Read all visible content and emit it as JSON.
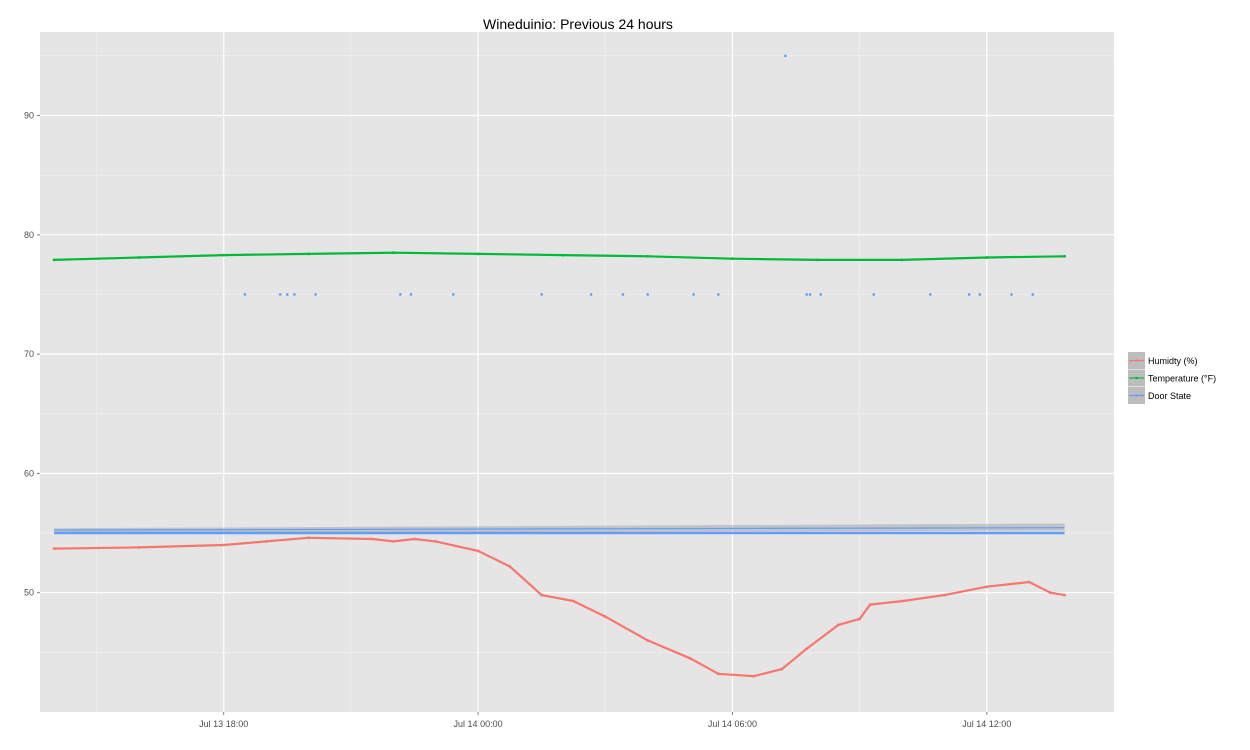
{
  "chart_data": {
    "type": "line",
    "title": "Wineduinio: Previous 24 hours",
    "xlabel": "",
    "ylabel": "",
    "x_axis_kind": "datetime",
    "xlim": [
      "Jul 13 13:40",
      "Jul 14 15:00"
    ],
    "ylim": [
      40,
      97
    ],
    "x_ticks": [
      "Jul 13 18:00",
      "Jul 14 00:00",
      "Jul 14 06:00",
      "Jul 14 12:00"
    ],
    "y_ticks": [
      50,
      60,
      70,
      80,
      90
    ],
    "grid": true,
    "legend_position": "right",
    "series": [
      {
        "name": "Humidty (%)",
        "color": "#F8766D",
        "style": "points with smoothed curve",
        "x": [
          "Jul 13 14:00",
          "Jul 13 16:00",
          "Jul 13 18:00",
          "Jul 13 19:00",
          "Jul 13 20:00",
          "Jul 13 21:30",
          "Jul 13 22:00",
          "Jul 13 22:30",
          "Jul 13 23:00",
          "Jul 14 00:00",
          "Jul 14 00:45",
          "Jul 14 01:30",
          "Jul 14 02:15",
          "Jul 14 03:00",
          "Jul 14 04:00",
          "Jul 14 05:00",
          "Jul 14 05:40",
          "Jul 14 06:30",
          "Jul 14 07:10",
          "Jul 14 07:45",
          "Jul 14 08:30",
          "Jul 14 09:00",
          "Jul 14 09:15",
          "Jul 14 10:00",
          "Jul 14 11:00",
          "Jul 14 12:00",
          "Jul 14 13:00",
          "Jul 14 13:30",
          "Jul 14 13:50"
        ],
        "values": [
          53.7,
          53.8,
          54.0,
          54.3,
          54.6,
          54.5,
          54.3,
          54.5,
          54.3,
          53.5,
          52.2,
          49.8,
          49.3,
          48.0,
          46.0,
          44.5,
          43.2,
          43.0,
          43.6,
          45.3,
          47.3,
          47.8,
          49.0,
          49.3,
          49.8,
          50.5,
          50.9,
          50.0,
          49.8
        ]
      },
      {
        "name": "Temperature (°F)",
        "color": "#00BA38",
        "style": "points with smoothed curve",
        "x": [
          "Jul 13 14:00",
          "Jul 13 16:00",
          "Jul 13 18:00",
          "Jul 13 20:00",
          "Jul 13 22:00",
          "Jul 14 00:00",
          "Jul 14 02:00",
          "Jul 14 04:00",
          "Jul 14 06:00",
          "Jul 14 08:00",
          "Jul 14 10:00",
          "Jul 14 12:00",
          "Jul 14 13:50"
        ],
        "values": [
          77.9,
          78.1,
          78.3,
          78.4,
          78.5,
          78.4,
          78.3,
          78.2,
          78.0,
          77.9,
          77.9,
          78.1,
          78.2
        ]
      },
      {
        "name": "Door State",
        "color": "#619CFF",
        "style": "points with smoothed curve",
        "baseline": 55,
        "x": [
          "Jul 13 18:30",
          "Jul 13 19:20",
          "Jul 13 19:30",
          "Jul 13 19:40",
          "Jul 13 20:10",
          "Jul 13 22:10",
          "Jul 13 22:25",
          "Jul 13 23:25",
          "Jul 14 01:30",
          "Jul 14 02:40",
          "Jul 14 03:25",
          "Jul 14 04:00",
          "Jul 14 05:05",
          "Jul 14 05:40",
          "Jul 14 07:15",
          "Jul 14 07:45",
          "Jul 14 07:50",
          "Jul 14 08:05",
          "Jul 14 09:20",
          "Jul 14 10:40",
          "Jul 14 11:35",
          "Jul 14 11:50",
          "Jul 14 12:35",
          "Jul 14 13:05"
        ],
        "values": [
          75,
          75,
          75,
          75,
          75,
          75,
          75,
          75,
          75,
          75,
          75,
          75,
          75,
          75,
          95,
          75,
          75,
          75,
          75,
          75,
          75,
          75,
          75,
          75
        ]
      }
    ]
  }
}
